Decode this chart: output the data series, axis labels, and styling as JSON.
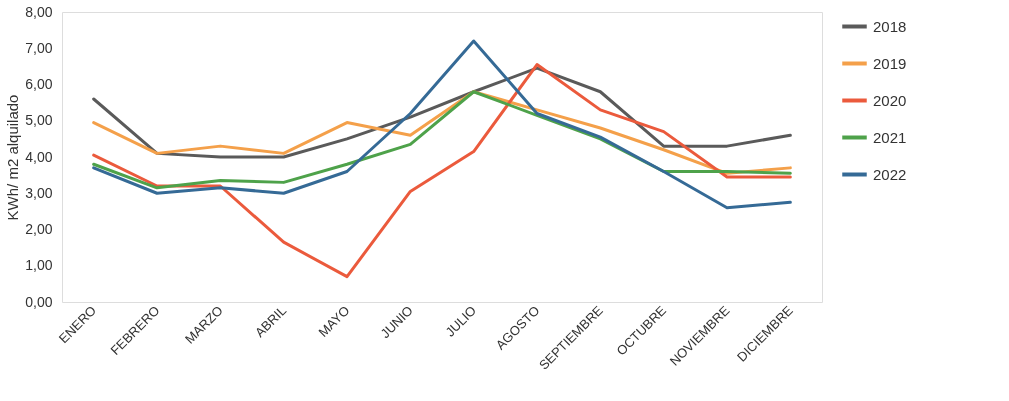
{
  "chart_data": {
    "type": "line",
    "ylabel": "KWh/ m2 alquilado",
    "categories": [
      "ENERO",
      "FEBRERO",
      "MARZO",
      "ABRIL",
      "MAYO",
      "JUNIO",
      "JULIO",
      "AGOSTO",
      "SEPTIEMBRE",
      "OCTUBRE",
      "NOVIEMBRE",
      "DICIEMBRE"
    ],
    "series": [
      {
        "name": "2018",
        "color": "#5a5a5a",
        "values": [
          5.6,
          4.1,
          4.0,
          4.0,
          4.5,
          5.1,
          5.8,
          6.45,
          5.8,
          4.3,
          4.3,
          4.6
        ]
      },
      {
        "name": "2019",
        "color": "#f4a04a",
        "values": [
          4.95,
          4.1,
          4.3,
          4.1,
          4.95,
          4.6,
          5.8,
          5.3,
          4.8,
          4.2,
          3.55,
          3.7
        ]
      },
      {
        "name": "2020",
        "color": "#eb5a3c",
        "values": [
          4.05,
          3.2,
          3.2,
          1.65,
          0.7,
          3.05,
          4.15,
          6.55,
          5.3,
          4.7,
          3.45,
          3.45
        ]
      },
      {
        "name": "2021",
        "color": "#4ea24a",
        "values": [
          3.8,
          3.15,
          3.35,
          3.3,
          3.8,
          4.35,
          5.8,
          5.15,
          4.5,
          3.6,
          3.6,
          3.55
        ]
      },
      {
        "name": "2022",
        "color": "#356a96",
        "values": [
          3.7,
          3.0,
          3.15,
          3.0,
          3.6,
          5.2,
          7.2,
          5.2,
          4.55,
          3.6,
          2.6,
          2.75
        ]
      }
    ],
    "ylim": [
      0,
      8
    ],
    "yticks": [
      {
        "value": 0,
        "label": "0,00"
      },
      {
        "value": 1,
        "label": "1,00"
      },
      {
        "value": 2,
        "label": "2,00"
      },
      {
        "value": 3,
        "label": "3,00"
      },
      {
        "value": 4,
        "label": "4,00"
      },
      {
        "value": 5,
        "label": "5,00"
      },
      {
        "value": 6,
        "label": "6,00"
      },
      {
        "value": 7,
        "label": "7,00"
      },
      {
        "value": 8,
        "label": "8,00"
      }
    ],
    "grid": false,
    "legend": "right",
    "marker": "none",
    "line_style": "solid"
  }
}
